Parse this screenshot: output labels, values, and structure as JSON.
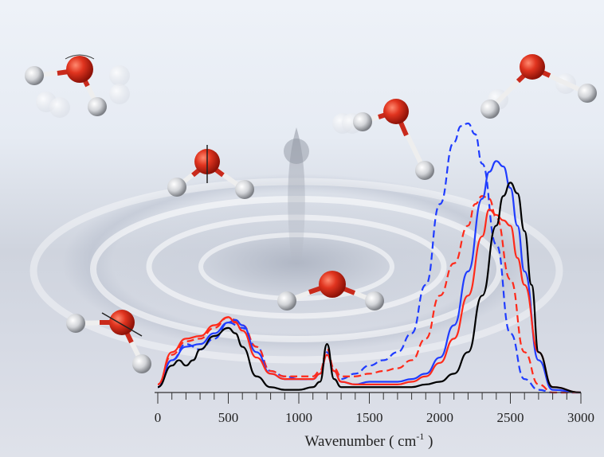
{
  "chart_data": {
    "type": "line",
    "title": "",
    "xlabel": "Wavenumber ( cm-1 )",
    "xlabel_main": "Wavenumber ( cm",
    "xlabel_sup": "-1",
    "xlabel_tail": " )",
    "ylabel": "",
    "xlim": [
      0,
      3000
    ],
    "x_ticks": [
      "0",
      "500",
      "1000",
      "1500",
      "2000",
      "2500",
      "3000"
    ],
    "grid": false,
    "legend": "none",
    "series": [
      {
        "name": "blue-dashed",
        "color": "#1f3cff",
        "dash": true,
        "x": [
          0,
          100,
          200,
          300,
          400,
          500,
          600,
          700,
          800,
          900,
          1000,
          1100,
          1150,
          1200,
          1250,
          1300,
          1400,
          1500,
          1600,
          1700,
          1800,
          1900,
          2000,
          2100,
          2150,
          2200,
          2250,
          2300,
          2400,
          2500,
          2600,
          2700,
          2800,
          3000
        ],
        "y": [
          0.02,
          0.12,
          0.18,
          0.16,
          0.2,
          0.26,
          0.24,
          0.17,
          0.08,
          0.06,
          0.05,
          0.05,
          0.07,
          0.15,
          0.08,
          0.05,
          0.07,
          0.1,
          0.12,
          0.15,
          0.22,
          0.4,
          0.7,
          0.93,
          0.99,
          1.0,
          0.96,
          0.85,
          0.55,
          0.22,
          0.05,
          0.01,
          0.0,
          0.0
        ]
      },
      {
        "name": "red-dashed",
        "color": "#ff2a1a",
        "dash": true,
        "x": [
          0,
          100,
          200,
          300,
          400,
          500,
          600,
          700,
          800,
          900,
          1000,
          1100,
          1150,
          1200,
          1250,
          1300,
          1400,
          1500,
          1600,
          1700,
          1800,
          1900,
          2000,
          2100,
          2200,
          2250,
          2300,
          2350,
          2400,
          2500,
          2600,
          2700,
          2800,
          3000
        ],
        "y": [
          0.03,
          0.14,
          0.19,
          0.2,
          0.24,
          0.28,
          0.25,
          0.17,
          0.08,
          0.06,
          0.06,
          0.06,
          0.08,
          0.16,
          0.09,
          0.06,
          0.06,
          0.07,
          0.08,
          0.09,
          0.12,
          0.2,
          0.36,
          0.48,
          0.62,
          0.7,
          0.73,
          0.72,
          0.65,
          0.42,
          0.15,
          0.03,
          0.0,
          0.0
        ]
      },
      {
        "name": "blue-solid",
        "color": "#1f3cff",
        "dash": false,
        "x": [
          0,
          100,
          200,
          300,
          400,
          500,
          550,
          600,
          700,
          800,
          900,
          1000,
          1100,
          1150,
          1200,
          1250,
          1300,
          1400,
          1500,
          1600,
          1700,
          1800,
          1900,
          2000,
          2100,
          2200,
          2300,
          2350,
          2400,
          2450,
          2500,
          2550,
          2600,
          2700,
          2800,
          3000
        ],
        "y": [
          0.02,
          0.12,
          0.17,
          0.18,
          0.22,
          0.26,
          0.27,
          0.25,
          0.15,
          0.07,
          0.05,
          0.05,
          0.05,
          0.07,
          0.14,
          0.08,
          0.04,
          0.03,
          0.04,
          0.04,
          0.04,
          0.05,
          0.07,
          0.13,
          0.25,
          0.45,
          0.72,
          0.82,
          0.86,
          0.84,
          0.76,
          0.62,
          0.45,
          0.12,
          0.01,
          0.0
        ]
      },
      {
        "name": "red-solid",
        "color": "#ff2a1a",
        "dash": false,
        "x": [
          0,
          100,
          200,
          300,
          400,
          500,
          550,
          600,
          700,
          800,
          900,
          1000,
          1100,
          1150,
          1200,
          1250,
          1300,
          1400,
          1500,
          1600,
          1700,
          1800,
          1900,
          2000,
          2100,
          2200,
          2300,
          2350,
          2400,
          2450,
          2500,
          2550,
          2600,
          2700,
          2800,
          3000
        ],
        "y": [
          0.03,
          0.15,
          0.2,
          0.21,
          0.25,
          0.28,
          0.26,
          0.23,
          0.13,
          0.07,
          0.05,
          0.05,
          0.05,
          0.07,
          0.14,
          0.08,
          0.04,
          0.03,
          0.03,
          0.03,
          0.03,
          0.04,
          0.06,
          0.11,
          0.2,
          0.36,
          0.58,
          0.68,
          0.66,
          0.64,
          0.62,
          0.5,
          0.4,
          0.15,
          0.02,
          0.0
        ]
      },
      {
        "name": "black-solid",
        "color": "#000000",
        "dash": false,
        "x": [
          0,
          100,
          150,
          200,
          250,
          300,
          400,
          500,
          550,
          600,
          700,
          800,
          900,
          1000,
          1100,
          1150,
          1200,
          1250,
          1300,
          1400,
          1500,
          1600,
          1700,
          1800,
          1900,
          2000,
          2100,
          2200,
          2300,
          2400,
          2450,
          2500,
          2550,
          2600,
          2650,
          2700,
          2800,
          3000
        ],
        "y": [
          0.02,
          0.1,
          0.12,
          0.1,
          0.12,
          0.16,
          0.21,
          0.24,
          0.22,
          0.17,
          0.06,
          0.02,
          0.01,
          0.01,
          0.02,
          0.04,
          0.18,
          0.05,
          0.02,
          0.02,
          0.02,
          0.02,
          0.02,
          0.02,
          0.03,
          0.04,
          0.07,
          0.15,
          0.36,
          0.62,
          0.73,
          0.78,
          0.74,
          0.6,
          0.4,
          0.15,
          0.02,
          0.0
        ]
      }
    ],
    "annotations": [
      "water molecule rocking mode (top-left)",
      "water molecule twisting mode",
      "water molecule wagging mode",
      "water molecule bending mode",
      "water molecule asymmetric stretch",
      "water molecule symmetric stretch"
    ]
  },
  "colors": {
    "blue": "#1f3cff",
    "red": "#ff2a1a",
    "black": "#000000",
    "oxygen": "#d42a1e",
    "hydrogen": "#d9d9d9"
  }
}
